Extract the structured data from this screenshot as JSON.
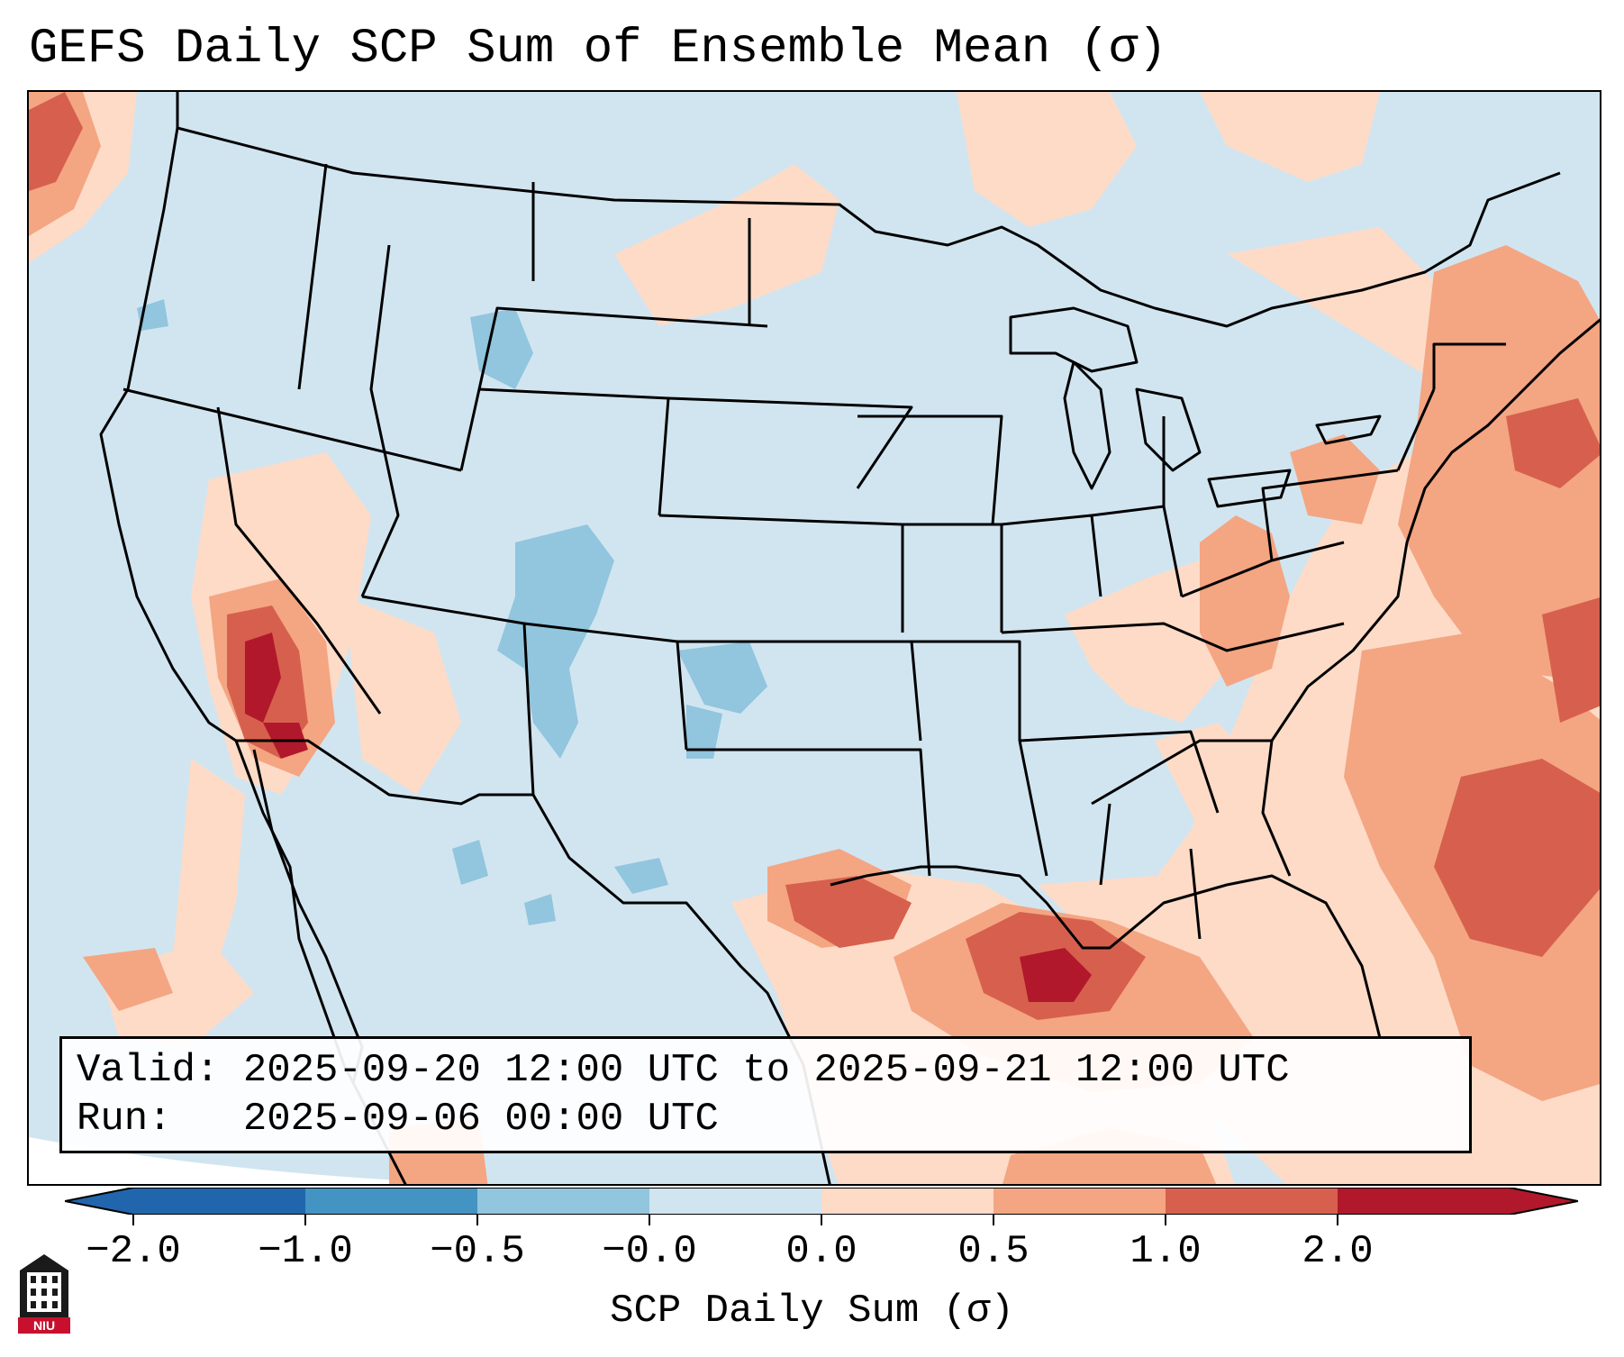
{
  "title": "GEFS Daily SCP Sum of Ensemble Mean (σ)",
  "info": {
    "valid_line": "Valid: 2025-09-20 12:00 UTC to 2025-09-21 12:00 UTC",
    "run_line": "Run:   2025-09-06 00:00 UTC"
  },
  "colorbar": {
    "label": "SCP Daily Sum (σ)",
    "ticks": [
      "−2.0",
      "−1.0",
      "−0.5",
      "−0.0",
      "0.0",
      "0.5",
      "1.0",
      "2.0"
    ],
    "colors": [
      "#2166ac",
      "#4393c3",
      "#92c5de",
      "#d1e5f0",
      "#fddbc7",
      "#f4a582",
      "#d6604d",
      "#b2182b"
    ],
    "under_color": "#2166ac",
    "over_color": "#b2182b"
  },
  "map": {
    "background_color": "#d1e5f0",
    "region": "Contiguous United States, Mexico and Gulf of Mexico"
  },
  "logo": {
    "text": "NIU"
  }
}
